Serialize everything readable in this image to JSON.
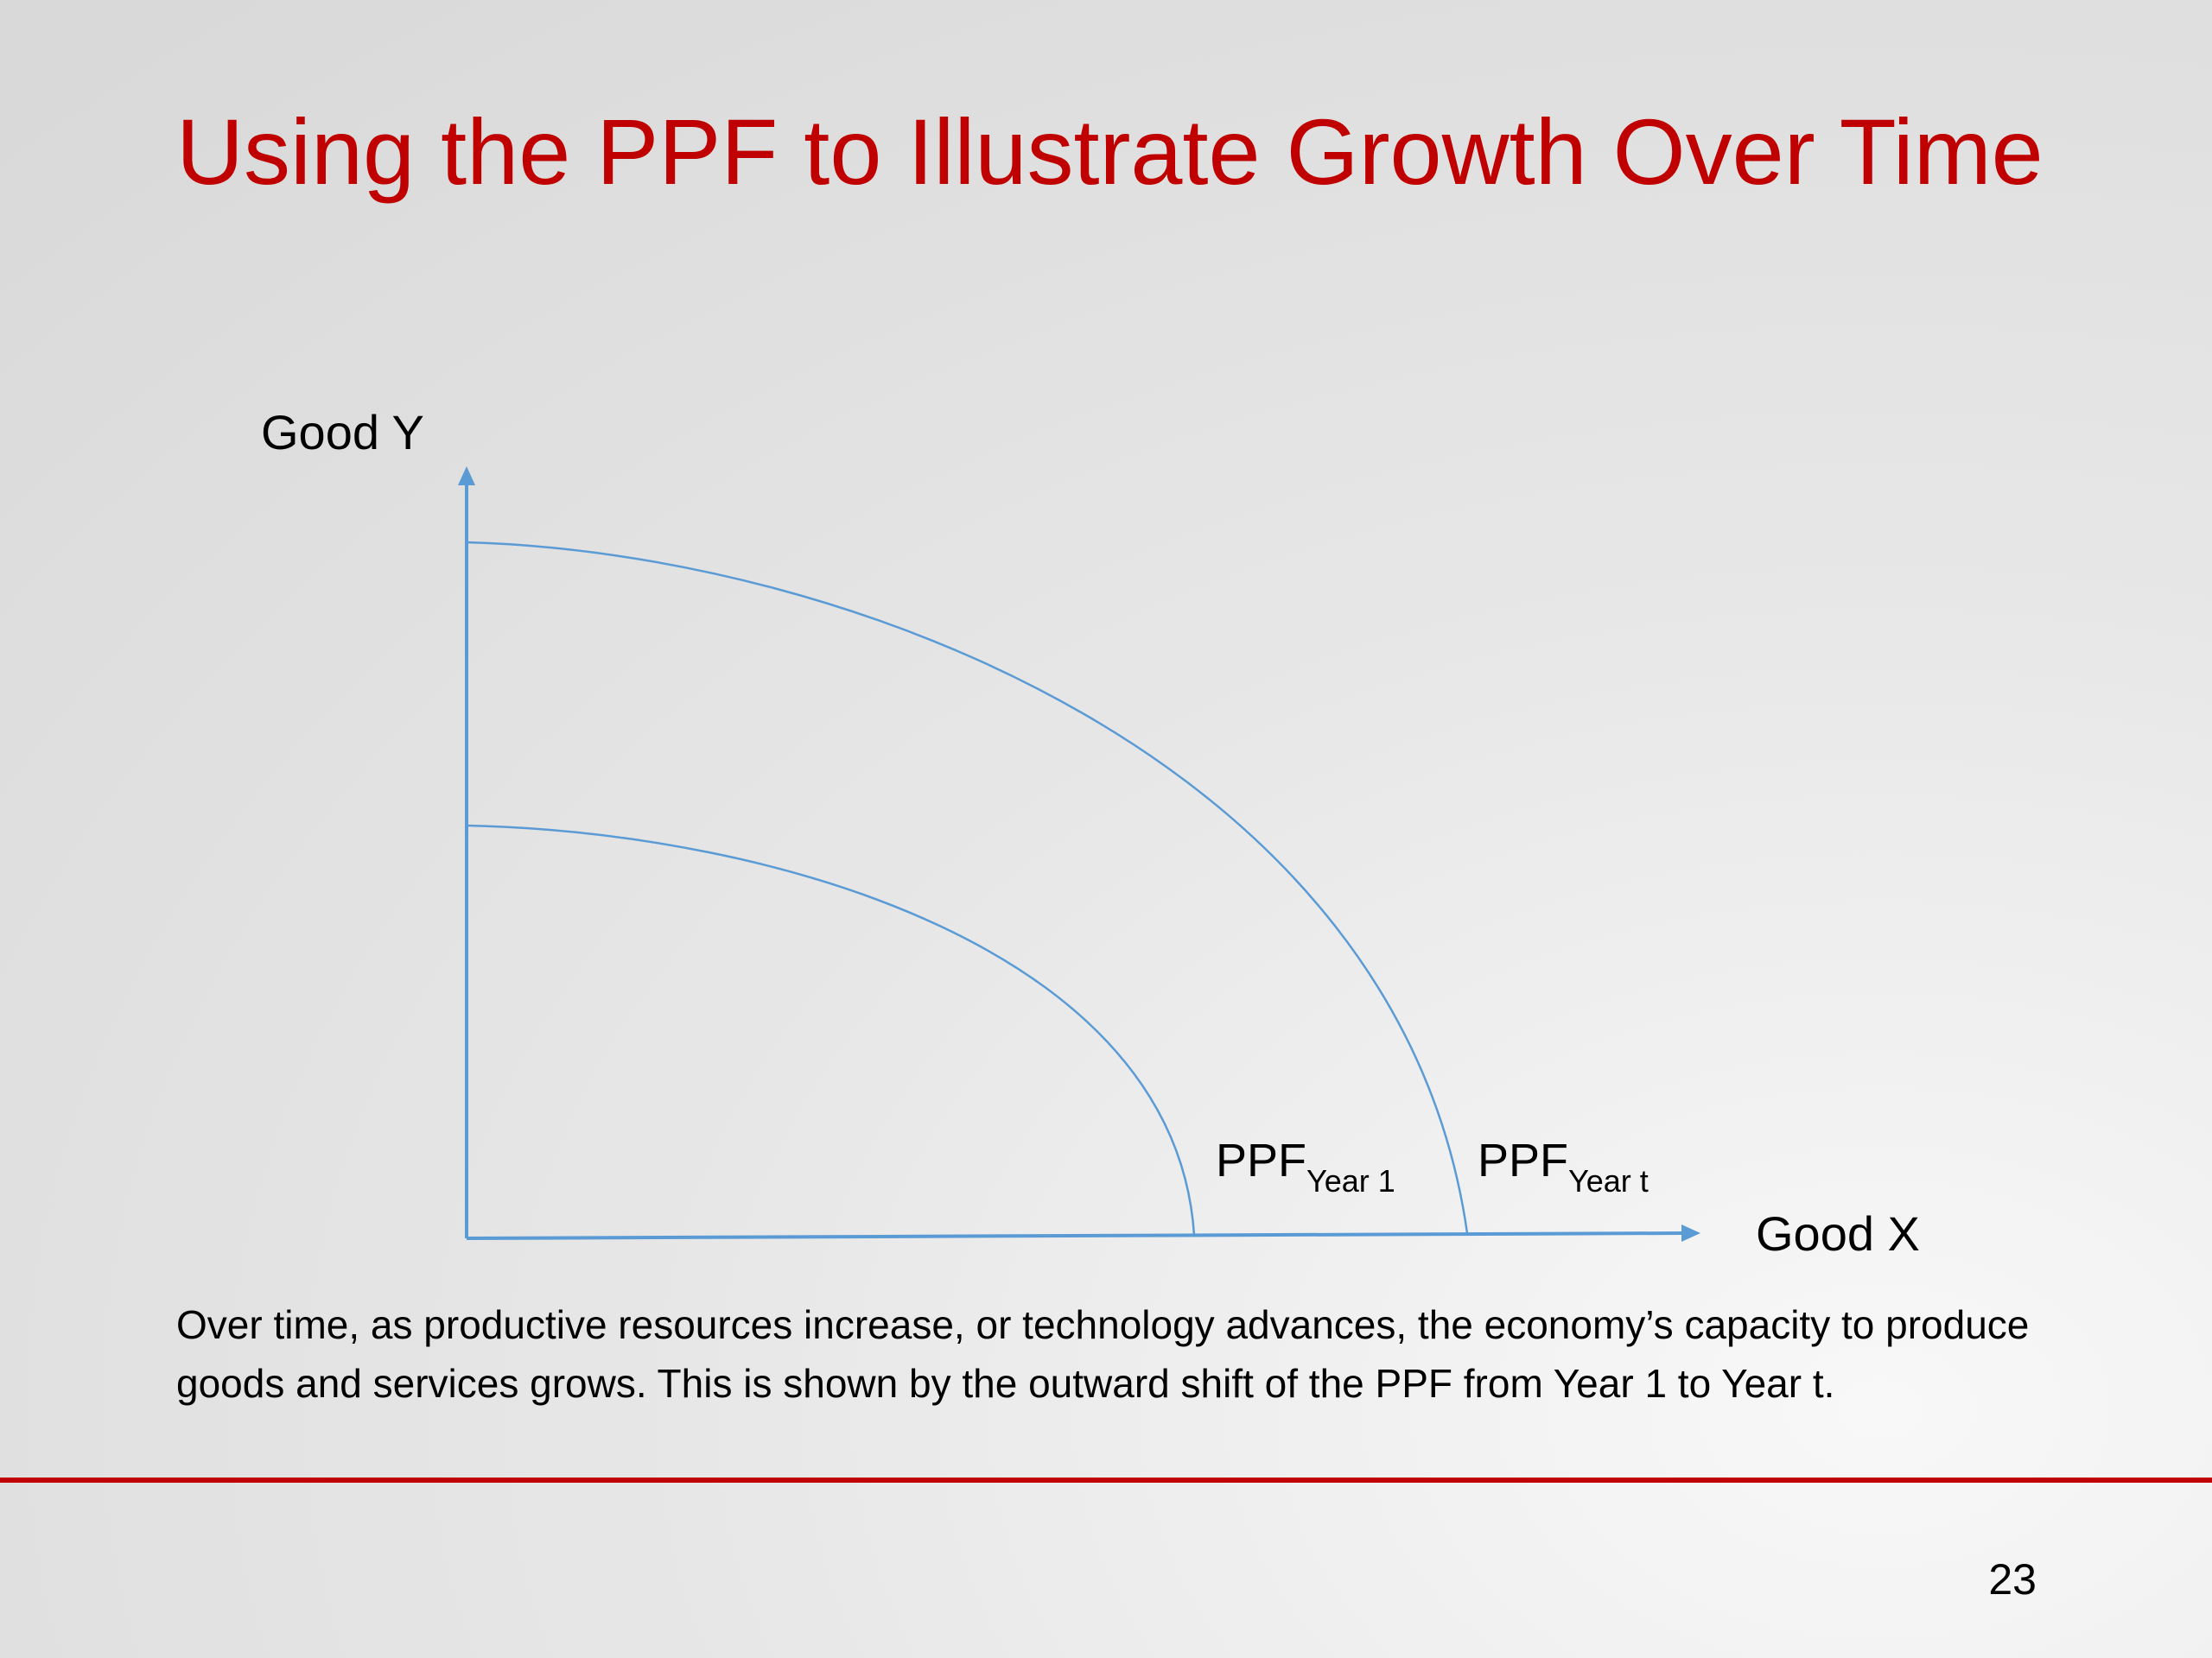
{
  "slide": {
    "title": "Using the PPF to Illustrate Growth Over Time",
    "caption": "Over time, as productive resources increase, or technology advances, the economy’s capacity to produce goods and services grows.  This is shown by the outward shift of the PPF from Year 1 to Year t.",
    "page_number": "23"
  },
  "diagram": {
    "y_axis_label": "Good Y",
    "x_axis_label": "Good X",
    "curves": [
      {
        "name": "PPF",
        "subscript": "Year 1"
      },
      {
        "name": "PPF",
        "subscript": "Year t"
      }
    ],
    "line_color": "#5b9bd5"
  },
  "colors": {
    "title": "#c00000",
    "rule": "#c00000",
    "text": "#000000"
  }
}
